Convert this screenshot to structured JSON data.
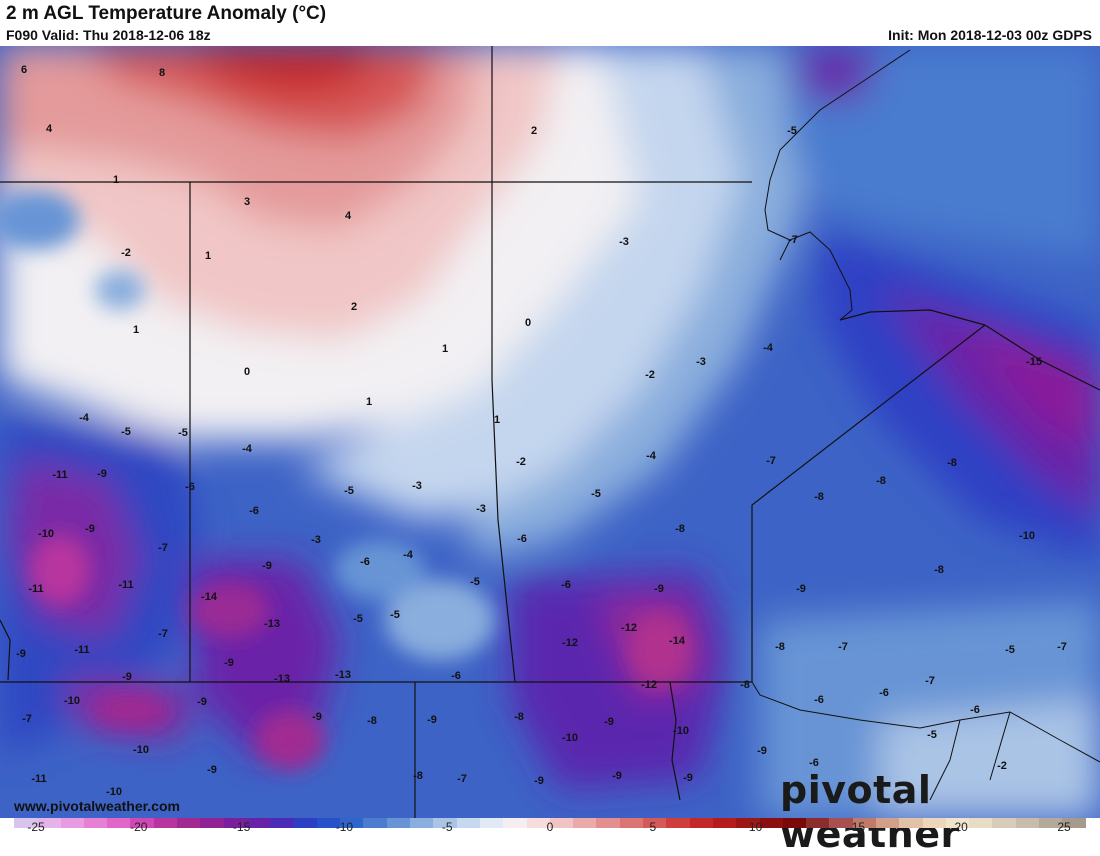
{
  "header": {
    "title": "2 m AGL Temperature Anomaly (°C)",
    "valid": "F090 Valid: Thu 2018-12-06 18z",
    "init": "Init: Mon 2018-12-03 00z GDPS"
  },
  "footer": {
    "website": "www.pivotalweather.com",
    "logo": "pivotal weather"
  },
  "colorbar": {
    "ticks": [
      "-25",
      "-20",
      "-15",
      "-10",
      "-5",
      "0",
      "5",
      "10",
      "15",
      "20",
      "25"
    ],
    "colors": [
      "#d9c4ee",
      "#e4b4e8",
      "#e79be0",
      "#e780d5",
      "#e066c8",
      "#cf47b4",
      "#b8359f",
      "#a02a92",
      "#8f2396",
      "#7a1f9d",
      "#6722a8",
      "#4c2bb6",
      "#2f3fc4",
      "#2552c8",
      "#2f66cc",
      "#4a7ccf",
      "#6894d5",
      "#8aaedd",
      "#aac4e6",
      "#c6d8ee",
      "#e0e9f4",
      "#f4eef0",
      "#f6dcdc",
      "#f1c4c4",
      "#ebaaaa",
      "#e38f8f",
      "#dc7474",
      "#d65959",
      "#cf3d3d",
      "#c42828",
      "#b51d1d",
      "#9c1616",
      "#8a1010",
      "#7a0a0a",
      "#8c2c2c",
      "#a85050",
      "#c07a6a",
      "#d2a088",
      "#e2c2a6",
      "#ecd6bc",
      "#f0e4cc",
      "#e8dcc4",
      "#d8ccb8",
      "#c8bcaa",
      "#b4aa9c",
      "#a69a8c"
    ]
  },
  "map_values": [
    {
      "label": "6",
      "gx": 24,
      "gy": 70
    },
    {
      "label": "8",
      "gx": 162,
      "gy": 73
    },
    {
      "label": "4",
      "gx": 49,
      "gy": 129
    },
    {
      "label": "2",
      "gx": 534,
      "gy": 131
    },
    {
      "label": "-5",
      "gx": 792,
      "gy": 131
    },
    {
      "label": "1",
      "gx": 116,
      "gy": 180
    },
    {
      "label": "3",
      "gx": 247,
      "gy": 202
    },
    {
      "label": "4",
      "gx": 348,
      "gy": 216
    },
    {
      "label": "-3",
      "gx": 624,
      "gy": 242
    },
    {
      "label": "-7",
      "gx": 793,
      "gy": 240
    },
    {
      "label": "-2",
      "gx": 126,
      "gy": 253
    },
    {
      "label": "1",
      "gx": 208,
      "gy": 256
    },
    {
      "label": "2",
      "gx": 354,
      "gy": 307
    },
    {
      "label": "1",
      "gx": 136,
      "gy": 330
    },
    {
      "label": "0",
      "gx": 528,
      "gy": 323
    },
    {
      "label": "1",
      "gx": 445,
      "gy": 349
    },
    {
      "label": "-4",
      "gx": 768,
      "gy": 348
    },
    {
      "label": "-3",
      "gx": 701,
      "gy": 362
    },
    {
      "label": "-15",
      "gx": 1034,
      "gy": 362
    },
    {
      "label": "0",
      "gx": 247,
      "gy": 372
    },
    {
      "label": "-2",
      "gx": 650,
      "gy": 375
    },
    {
      "label": "1",
      "gx": 369,
      "gy": 402
    },
    {
      "label": "-4",
      "gx": 84,
      "gy": 418
    },
    {
      "label": "1",
      "gx": 497,
      "gy": 420
    },
    {
      "label": "-5",
      "gx": 126,
      "gy": 432
    },
    {
      "label": "-5",
      "gx": 183,
      "gy": 433
    },
    {
      "label": "-4",
      "gx": 247,
      "gy": 449
    },
    {
      "label": "-4",
      "gx": 651,
      "gy": 456
    },
    {
      "label": "-2",
      "gx": 521,
      "gy": 462
    },
    {
      "label": "-7",
      "gx": 771,
      "gy": 461
    },
    {
      "label": "-8",
      "gx": 952,
      "gy": 463
    },
    {
      "label": "-11",
      "gx": 60,
      "gy": 475
    },
    {
      "label": "-9",
      "gx": 102,
      "gy": 474
    },
    {
      "label": "-6",
      "gx": 190,
      "gy": 487
    },
    {
      "label": "-3",
      "gx": 417,
      "gy": 486
    },
    {
      "label": "-5",
      "gx": 349,
      "gy": 491
    },
    {
      "label": "-5",
      "gx": 596,
      "gy": 494
    },
    {
      "label": "-8",
      "gx": 881,
      "gy": 481
    },
    {
      "label": "-8",
      "gx": 819,
      "gy": 497
    },
    {
      "label": "-3",
      "gx": 481,
      "gy": 509
    },
    {
      "label": "-6",
      "gx": 254,
      "gy": 511
    },
    {
      "label": "-10",
      "gx": 46,
      "gy": 534
    },
    {
      "label": "-9",
      "gx": 90,
      "gy": 529
    },
    {
      "label": "-8",
      "gx": 680,
      "gy": 529
    },
    {
      "label": "-6",
      "gx": 522,
      "gy": 539
    },
    {
      "label": "-3",
      "gx": 316,
      "gy": 540
    },
    {
      "label": "-10",
      "gx": 1027,
      "gy": 536
    },
    {
      "label": "-7",
      "gx": 163,
      "gy": 548
    },
    {
      "label": "-4",
      "gx": 408,
      "gy": 555
    },
    {
      "label": "-6",
      "gx": 365,
      "gy": 562
    },
    {
      "label": "-9",
      "gx": 267,
      "gy": 566
    },
    {
      "label": "-8",
      "gx": 939,
      "gy": 570
    },
    {
      "label": "-5",
      "gx": 475,
      "gy": 582
    },
    {
      "label": "-6",
      "gx": 566,
      "gy": 585
    },
    {
      "label": "-11",
      "gx": 36,
      "gy": 589
    },
    {
      "label": "-11",
      "gx": 126,
      "gy": 585
    },
    {
      "label": "-9",
      "gx": 659,
      "gy": 589
    },
    {
      "label": "-9",
      "gx": 801,
      "gy": 589
    },
    {
      "label": "-14",
      "gx": 209,
      "gy": 597
    },
    {
      "label": "-5",
      "gx": 358,
      "gy": 619
    },
    {
      "label": "-5",
      "gx": 395,
      "gy": 615
    },
    {
      "label": "-13",
      "gx": 272,
      "gy": 624
    },
    {
      "label": "-12",
      "gx": 629,
      "gy": 628
    },
    {
      "label": "-7",
      "gx": 163,
      "gy": 634
    },
    {
      "label": "-14",
      "gx": 677,
      "gy": 641
    },
    {
      "label": "-12",
      "gx": 570,
      "gy": 643
    },
    {
      "label": "-8",
      "gx": 780,
      "gy": 647
    },
    {
      "label": "-7",
      "gx": 843,
      "gy": 647
    },
    {
      "label": "-5",
      "gx": 1010,
      "gy": 650
    },
    {
      "label": "-7",
      "gx": 1062,
      "gy": 647
    },
    {
      "label": "-11",
      "gx": 82,
      "gy": 650
    },
    {
      "label": "-9",
      "gx": 21,
      "gy": 654
    },
    {
      "label": "-9",
      "gx": 229,
      "gy": 663
    },
    {
      "label": "-9",
      "gx": 127,
      "gy": 677
    },
    {
      "label": "-13",
      "gx": 282,
      "gy": 679
    },
    {
      "label": "-13",
      "gx": 343,
      "gy": 675
    },
    {
      "label": "-6",
      "gx": 456,
      "gy": 676
    },
    {
      "label": "-12",
      "gx": 649,
      "gy": 685
    },
    {
      "label": "-8",
      "gx": 745,
      "gy": 685
    },
    {
      "label": "-7",
      "gx": 930,
      "gy": 681
    },
    {
      "label": "-6",
      "gx": 884,
      "gy": 693
    },
    {
      "label": "-6",
      "gx": 819,
      "gy": 700
    },
    {
      "label": "-10",
      "gx": 72,
      "gy": 701
    },
    {
      "label": "-9",
      "gx": 202,
      "gy": 702
    },
    {
      "label": "-6",
      "gx": 975,
      "gy": 710
    },
    {
      "label": "-7",
      "gx": 27,
      "gy": 719
    },
    {
      "label": "-9",
      "gx": 317,
      "gy": 717
    },
    {
      "label": "-8",
      "gx": 372,
      "gy": 721
    },
    {
      "label": "-9",
      "gx": 432,
      "gy": 720
    },
    {
      "label": "-8",
      "gx": 519,
      "gy": 717
    },
    {
      "label": "-9",
      "gx": 609,
      "gy": 722
    },
    {
      "label": "-10",
      "gx": 681,
      "gy": 731
    },
    {
      "label": "-5",
      "gx": 932,
      "gy": 735
    },
    {
      "label": "-10",
      "gx": 570,
      "gy": 738
    },
    {
      "label": "-10",
      "gx": 141,
      "gy": 750
    },
    {
      "label": "-9",
      "gx": 762,
      "gy": 751
    },
    {
      "label": "-6",
      "gx": 814,
      "gy": 763
    },
    {
      "label": "-2",
      "gx": 1002,
      "gy": 766
    },
    {
      "label": "-9",
      "gx": 212,
      "gy": 770
    },
    {
      "label": "-8",
      "gx": 418,
      "gy": 776
    },
    {
      "label": "-7",
      "gx": 462,
      "gy": 779
    },
    {
      "label": "-9",
      "gx": 539,
      "gy": 781
    },
    {
      "label": "-9",
      "gx": 617,
      "gy": 776
    },
    {
      "label": "-9",
      "gx": 688,
      "gy": 778
    },
    {
      "label": "-11",
      "gx": 39,
      "gy": 779
    },
    {
      "label": "-10",
      "gx": 114,
      "gy": 792
    }
  ]
}
